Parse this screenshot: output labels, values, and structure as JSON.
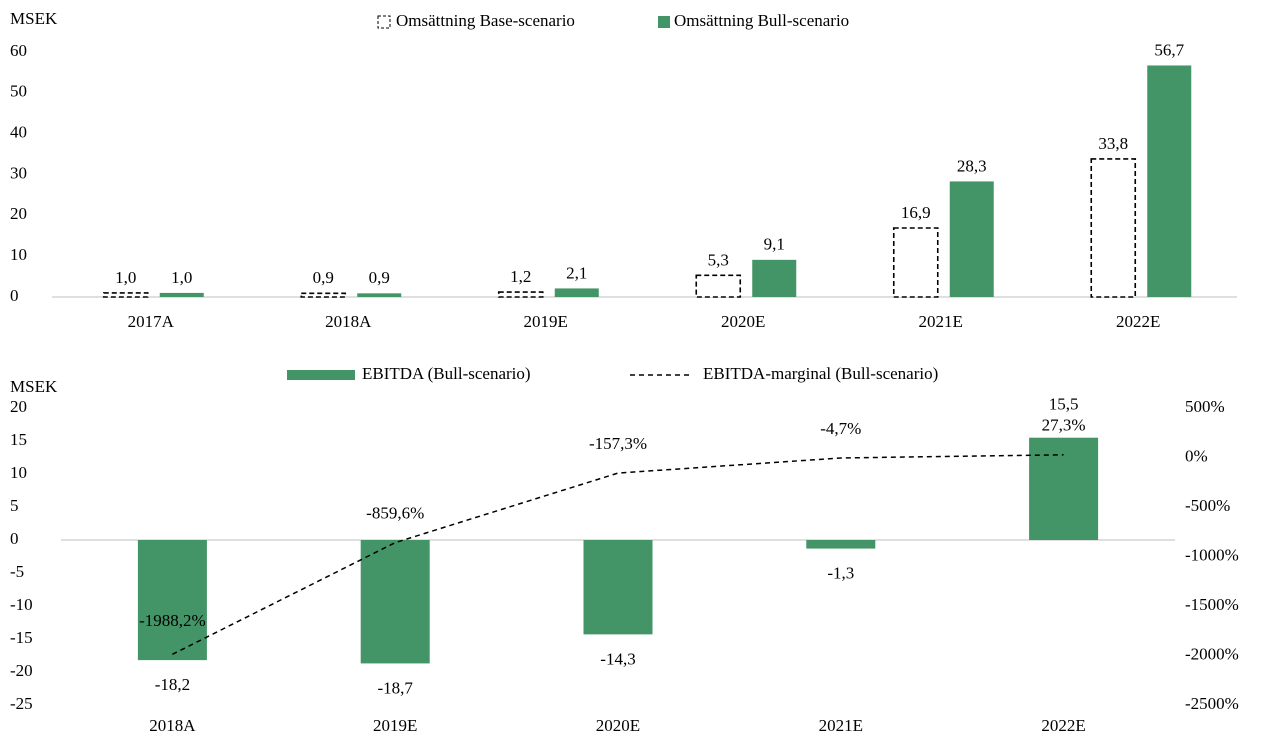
{
  "chart_data": [
    {
      "type": "bar",
      "y_label": "MSEK",
      "categories": [
        "2017A",
        "2018A",
        "2019E",
        "2020E",
        "2021E",
        "2022E"
      ],
      "series": [
        {
          "name": "Omsättning Base-scenario",
          "color": "#ffffff",
          "style": "dashed-outline",
          "values": [
            1.0,
            0.9,
            1.2,
            5.3,
            16.9,
            33.8
          ],
          "value_labels": [
            "1,0",
            "0,9",
            "1,2",
            "5,3",
            "16,9",
            "33,8"
          ]
        },
        {
          "name": "Omsättning Bull-scenario",
          "color": "#439466",
          "values": [
            1.0,
            0.9,
            2.1,
            9.1,
            28.3,
            56.7
          ],
          "value_labels": [
            "1,0",
            "0,9",
            "2,1",
            "9,1",
            "28,3",
            "56,7"
          ]
        }
      ],
      "ylim": [
        0,
        60
      ],
      "yticks": [
        0,
        10,
        20,
        30,
        40,
        50,
        60
      ],
      "legend": "top"
    },
    {
      "type": "bar-line",
      "y_label": "MSEK",
      "categories": [
        "2018A",
        "2019E",
        "2020E",
        "2021E",
        "2022E"
      ],
      "series": [
        {
          "name": "EBITDA (Bull-scenario)",
          "type": "bar",
          "color": "#439466",
          "values": [
            -18.2,
            -18.7,
            -14.3,
            -1.3,
            15.5
          ],
          "value_labels": [
            "-18,2",
            "-18,7",
            "-14,3",
            "-1,3",
            "15,5"
          ]
        },
        {
          "name": "EBITDA-marginal (Bull-scenario)",
          "type": "line",
          "axis": "y2",
          "color": "#000000",
          "style": "dashed",
          "values": [
            -1988.2,
            -859.6,
            -157.3,
            -4.7,
            27.3
          ],
          "value_labels": [
            "-1988,2%",
            "-859,6%",
            "-157,3%",
            "-4,7%",
            "27,3%"
          ]
        }
      ],
      "ylim": [
        -25,
        20
      ],
      "yticks": [
        -25,
        -20,
        -15,
        -10,
        -5,
        0,
        5,
        10,
        15,
        20
      ],
      "y2lim": [
        -2500,
        500
      ],
      "y2ticks": [
        {
          "value": -2500,
          "label": "-2500%"
        },
        {
          "value": -2000,
          "label": "-2000%"
        },
        {
          "value": -1500,
          "label": "-1500%"
        },
        {
          "value": -1000,
          "label": "-1000%"
        },
        {
          "value": -500,
          "label": "-500%"
        },
        {
          "value": 0,
          "label": "0%"
        },
        {
          "value": 500,
          "label": "500%"
        }
      ],
      "legend": "top"
    }
  ]
}
